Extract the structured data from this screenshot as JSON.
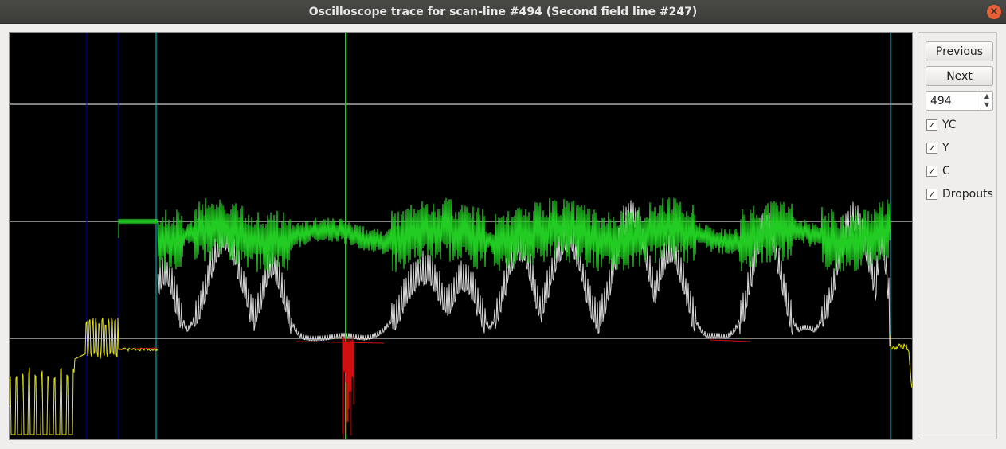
{
  "window": {
    "title": "Oscilloscope trace for scan-line #494 (Second field line #247)"
  },
  "controls": {
    "previous_label": "Previous",
    "next_label": "Next",
    "line_number": "494",
    "checkboxes": [
      {
        "label": "YC",
        "checked": true
      },
      {
        "label": "Y",
        "checked": true
      },
      {
        "label": "C",
        "checked": true
      },
      {
        "label": "Dropouts",
        "checked": true
      }
    ]
  },
  "icons": {
    "close": "close-icon",
    "spin_up": "spin-up-icon",
    "spin_down": "spin-down-icon",
    "check": "checkmark-icon"
  },
  "colors": {
    "yc_trace": "#e8e800",
    "y_trace": "#ffffff",
    "c_trace": "#22cc22",
    "dropouts": "#d01010",
    "sync_markers": "#0000c8",
    "active_markers": "#00c8d8",
    "grid": "#ffffff"
  }
}
